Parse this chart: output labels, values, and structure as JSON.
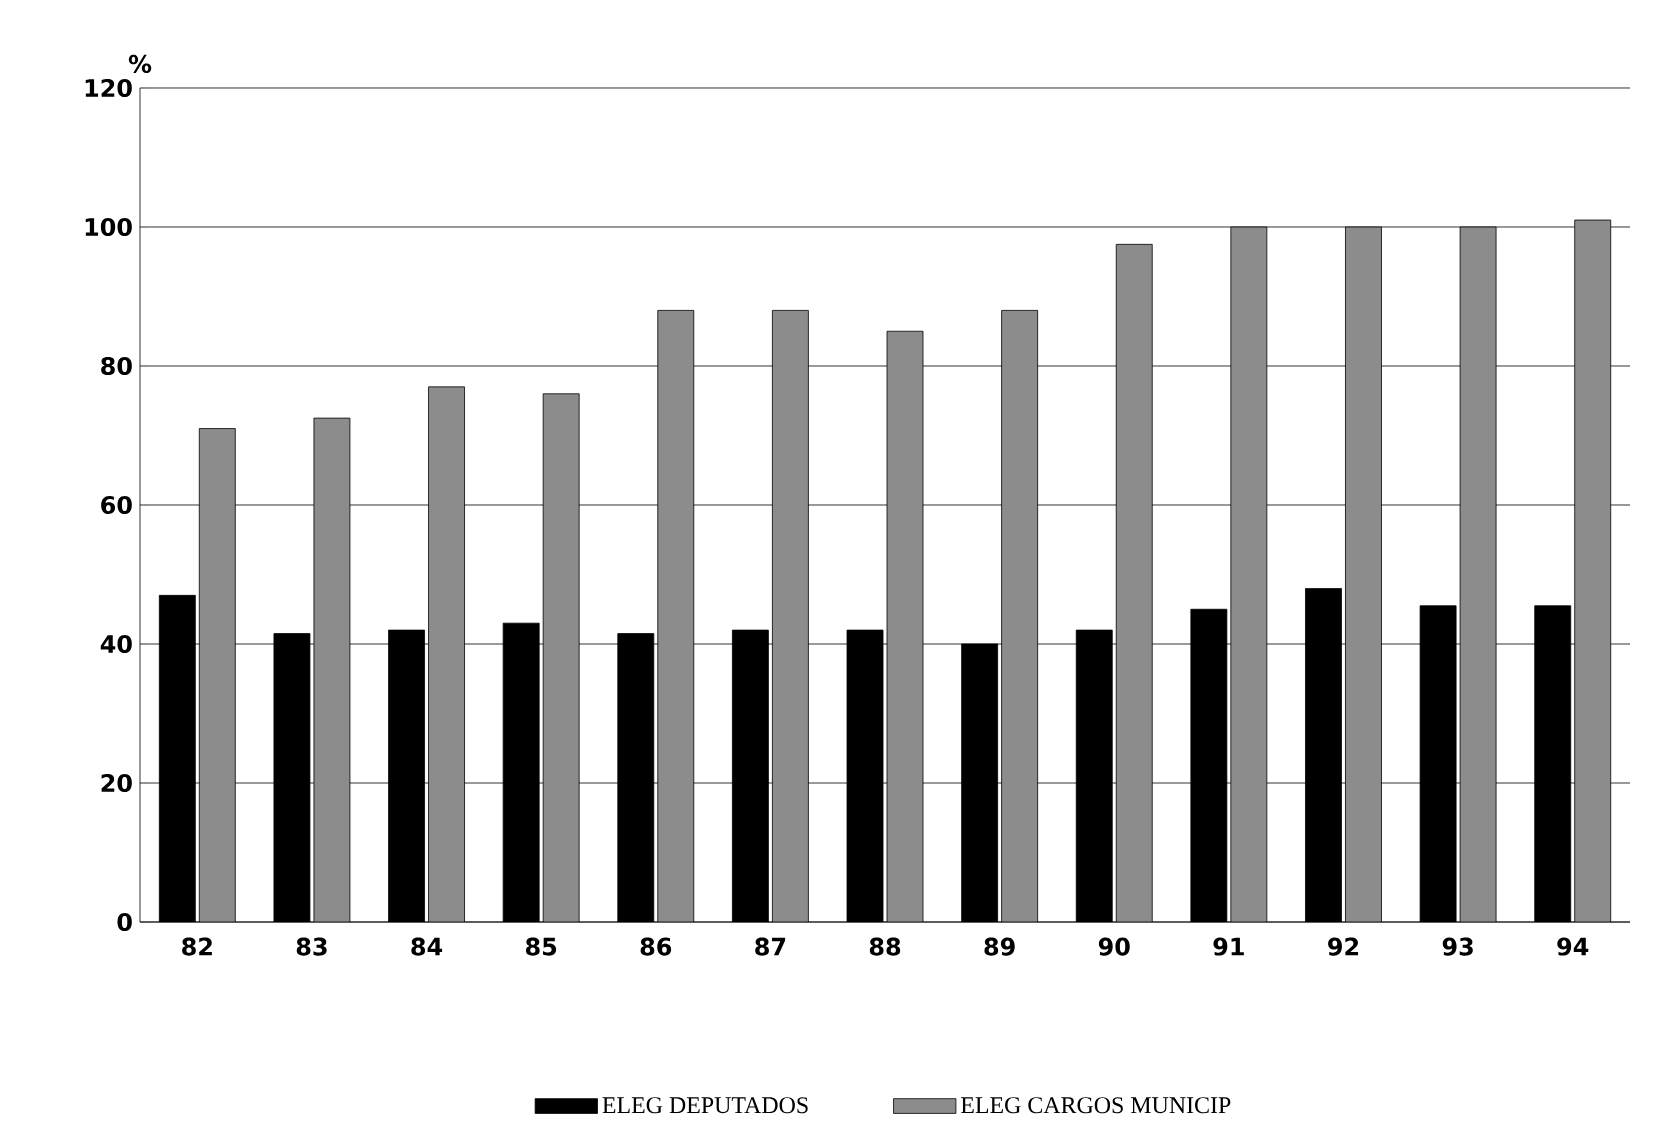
{
  "chart_data": {
    "type": "bar",
    "ylabel": "%",
    "categories": [
      "82",
      "83",
      "84",
      "85",
      "86",
      "87",
      "88",
      "89",
      "90",
      "91",
      "92",
      "93",
      "94"
    ],
    "series": [
      {
        "name": "ELEG DEPUTADOS",
        "color": "#000000",
        "values": [
          47,
          41.5,
          42,
          43,
          41.5,
          42,
          42,
          40,
          42,
          45,
          48,
          45.5,
          45.5
        ]
      },
      {
        "name": "ELEG CARGOS MUNICIP",
        "color": "#8c8c8c",
        "values": [
          71,
          72.5,
          77,
          76,
          88,
          88,
          85,
          88,
          97.5,
          100,
          100,
          100,
          101
        ]
      }
    ],
    "ylim": [
      0,
      120
    ],
    "yticks": [
      0,
      20,
      40,
      60,
      80,
      100,
      120
    ],
    "grid": "y",
    "legend": "bottom"
  }
}
